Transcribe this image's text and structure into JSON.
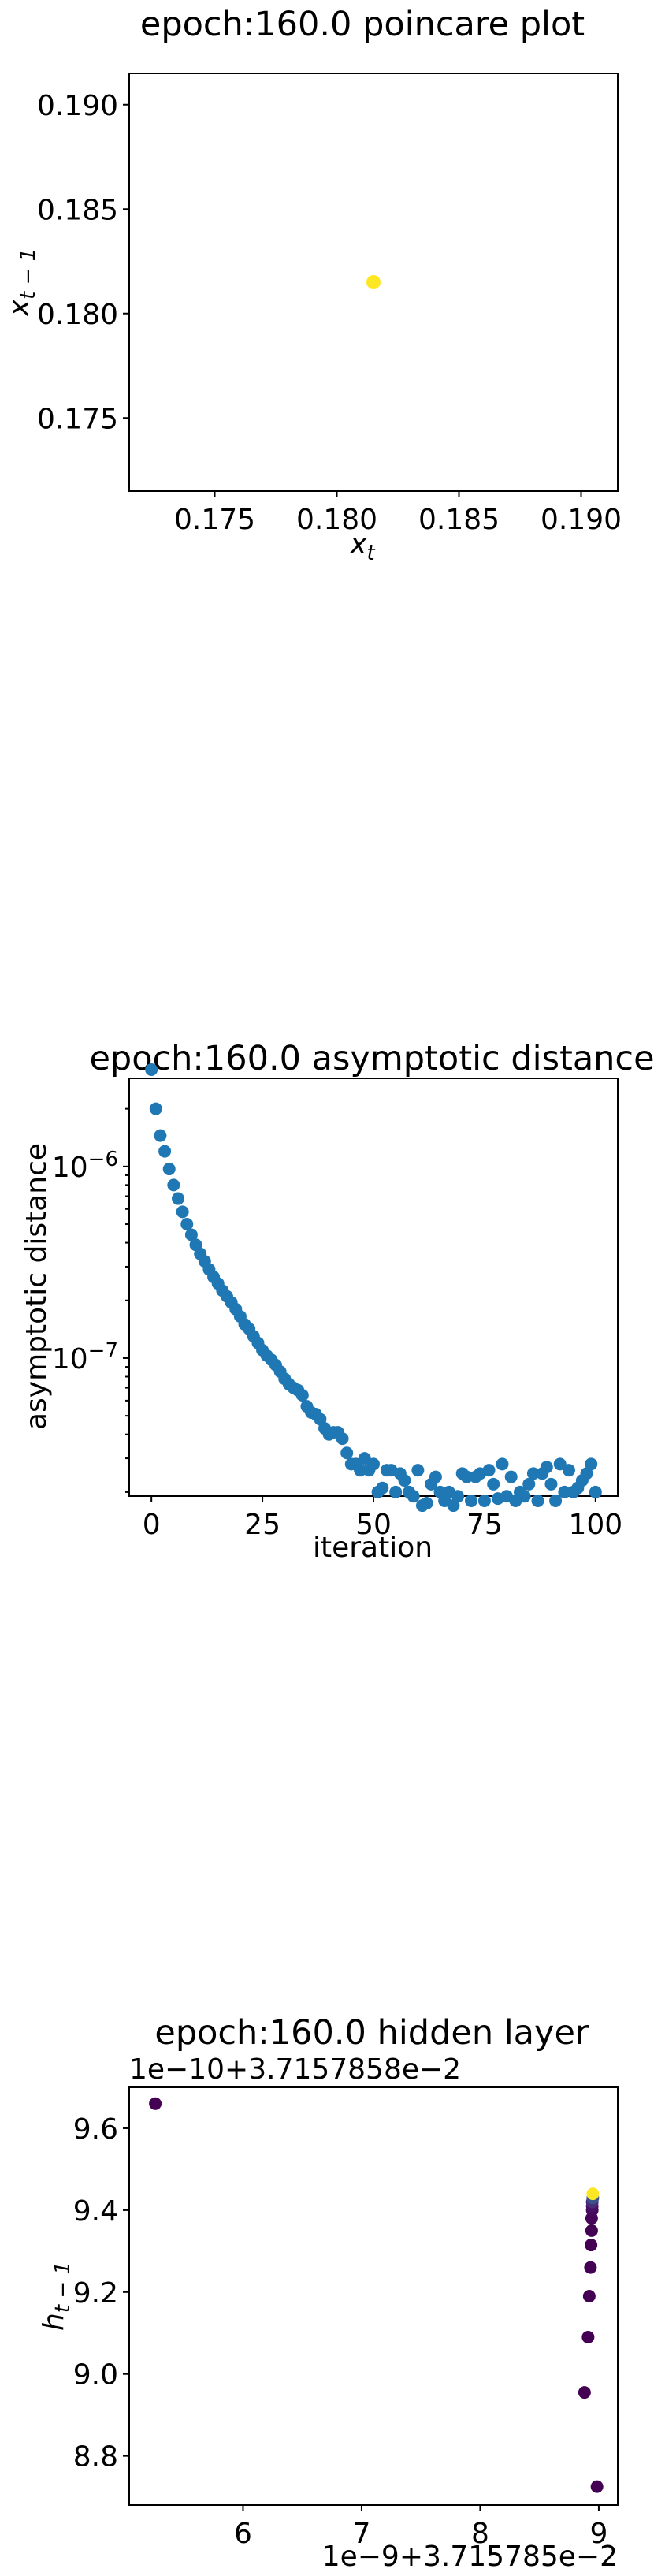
{
  "chart_data": [
    {
      "type": "scatter",
      "title": "epoch:160.0 poincare plot",
      "xlabel_base": "x",
      "xlabel_sub": "t",
      "ylabel_base": "x",
      "ylabel_sub": "t − 1",
      "xlim": [
        0.1715,
        0.1915
      ],
      "ylim": [
        0.1715,
        0.1915
      ],
      "xticks": [
        "0.175",
        "0.180",
        "0.185",
        "0.190"
      ],
      "yticks": [
        "0.175",
        "0.180",
        "0.185",
        "0.190"
      ],
      "point_color": "#fde725",
      "points": [
        [
          0.1815,
          0.1815
        ]
      ]
    },
    {
      "type": "scatter",
      "title": "epoch:160.0 asymptotic distance",
      "xlabel": "iteration",
      "ylabel": "asymptotic distance",
      "yscale": "log",
      "xlim": [
        -5,
        105
      ],
      "ylim_log10": [
        -7.72,
        -5.54
      ],
      "xticks": [
        "0",
        "25",
        "50",
        "75",
        "100"
      ],
      "yticks": [
        {
          "base": "10",
          "exp": "−6"
        },
        {
          "base": "10",
          "exp": "−7"
        }
      ],
      "point_color": "#1f77b4",
      "y": [
        3.2e-06,
        2e-06,
        1.45e-06,
        1.2e-06,
        9.7e-07,
        8e-07,
        6.8e-07,
        5.8e-07,
        5e-07,
        4.4e-07,
        3.9e-07,
        3.5e-07,
        3.2e-07,
        2.9e-07,
        2.65e-07,
        2.45e-07,
        2.25e-07,
        2.1e-07,
        1.95e-07,
        1.8e-07,
        1.65e-07,
        1.5e-07,
        1.42e-07,
        1.3e-07,
        1.2e-07,
        1.1e-07,
        1.03e-07,
        9.8e-08,
        9.2e-08,
        8.5e-08,
        7.8e-08,
        7.3e-08,
        7e-08,
        6.8e-08,
        6.4e-08,
        5.6e-08,
        5.2e-08,
        5.1e-08,
        4.8e-08,
        4.3e-08,
        4e-08,
        4.1e-08,
        4.1e-08,
        3.8e-08,
        3.2e-08,
        2.8e-08,
        2.8e-08,
        2.6e-08,
        3e-08,
        2.6e-08,
        2.8e-08,
        2e-08,
        2.1e-08,
        2.6e-08,
        2.6e-08,
        2e-08,
        2.5e-08,
        2.3e-08,
        2e-08,
        1.9e-08,
        2.6e-08,
        1.7e-08,
        1.75e-08,
        2.2e-08,
        2.4e-08,
        2e-08,
        1.8e-08,
        2e-08,
        1.7e-08,
        1.9e-08,
        2.5e-08,
        2.4e-08,
        1.8e-08,
        2.4e-08,
        2.5e-08,
        1.8e-08,
        2.6e-08,
        2.2e-08,
        1.85e-08,
        2.8e-08,
        1.9e-08,
        2.4e-08,
        1.8e-08,
        2e-08,
        1.9e-08,
        2.2e-08,
        2.5e-08,
        1.8e-08,
        2.5e-08,
        2.7e-08,
        2.2e-08,
        1.8e-08,
        2.8e-08,
        2e-08,
        2.6e-08,
        2e-08,
        2.1e-08,
        2.3e-08,
        2.5e-08,
        2.8e-08,
        2e-08
      ]
    },
    {
      "type": "scatter",
      "title": "epoch:160.0 hidden layer",
      "ylabel_base": "h",
      "ylabel_sub": "t − 1",
      "x_offset_text": "1e−9+3.715785e−2",
      "y_offset_text": "1e−10+3.7157858e−2",
      "xlim": [
        5.04,
        9.16
      ],
      "ylim": [
        8.68,
        9.7
      ],
      "xticks": [
        "6",
        "7",
        "8",
        "9"
      ],
      "yticks": [
        "8.8",
        "9.0",
        "9.2",
        "9.4",
        "9.6"
      ],
      "colormap": [
        "#440154",
        "#fde725"
      ],
      "points": [
        {
          "x": 5.26,
          "y": 9.66,
          "c": "#440154"
        },
        {
          "x": 8.88,
          "y": 8.955,
          "c": "#440154"
        },
        {
          "x": 8.91,
          "y": 9.09,
          "c": "#440154"
        },
        {
          "x": 8.92,
          "y": 9.19,
          "c": "#440154"
        },
        {
          "x": 8.93,
          "y": 9.26,
          "c": "#440154"
        },
        {
          "x": 8.935,
          "y": 9.315,
          "c": "#440154"
        },
        {
          "x": 8.94,
          "y": 9.35,
          "c": "#440154"
        },
        {
          "x": 8.94,
          "y": 9.38,
          "c": "#450457"
        },
        {
          "x": 8.945,
          "y": 9.4,
          "c": "#46085c"
        },
        {
          "x": 8.945,
          "y": 9.41,
          "c": "#471063"
        },
        {
          "x": 8.945,
          "y": 9.42,
          "c": "#472c7a"
        },
        {
          "x": 8.95,
          "y": 9.43,
          "c": "#3b528b"
        },
        {
          "x": 8.95,
          "y": 9.44,
          "c": "#fde725"
        },
        {
          "x": 8.985,
          "y": 8.725,
          "c": "#440154"
        }
      ]
    }
  ]
}
